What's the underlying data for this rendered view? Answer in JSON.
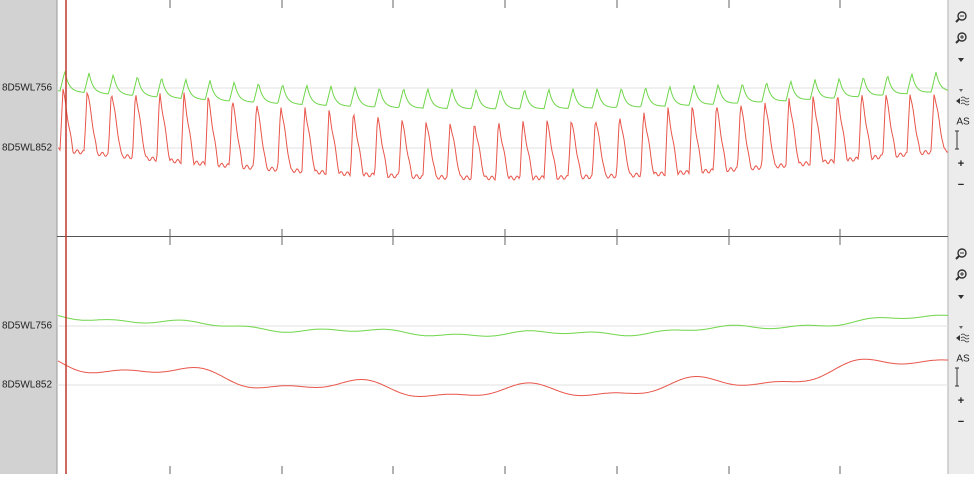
{
  "panels": [
    {
      "channels": [
        "8D5WL756",
        "8D5WL852"
      ],
      "toolbar": {
        "autoscale": "AS",
        "plus": "+",
        "minus": "−"
      }
    },
    {
      "channels": [
        "8D5WL756",
        "8D5WL852"
      ],
      "toolbar": {
        "autoscale": "AS",
        "plus": "+",
        "minus": "−"
      }
    }
  ]
}
